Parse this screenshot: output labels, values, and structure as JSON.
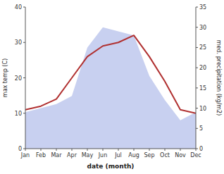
{
  "chart_data": {
    "type": "line",
    "xlabel": "date (month)",
    "ylabel": "max temp (C)",
    "y2label": "med. precipitation (kg/m2)",
    "categories": [
      "Jan",
      "Feb",
      "Mar",
      "Apr",
      "May",
      "Jun",
      "Jul",
      "Aug",
      "Sep",
      "Oct",
      "Nov",
      "Dec"
    ],
    "series": [
      {
        "type": "area",
        "axis": "y2",
        "color": "#c8d0f0",
        "values": [
          9,
          10,
          11,
          13,
          25,
          30,
          29,
          28,
          18,
          12,
          7,
          9
        ]
      },
      {
        "type": "line",
        "color": "#b03030",
        "values": [
          11,
          12,
          14,
          20,
          26,
          29,
          30,
          32,
          26,
          19,
          11,
          10
        ]
      }
    ],
    "ylim": [
      0,
      40
    ],
    "yticks": [
      0,
      10,
      20,
      30,
      40
    ],
    "y2lim": [
      0,
      35
    ],
    "y2ticks": [
      0,
      5,
      10,
      15,
      20,
      25,
      30,
      35
    ],
    "grid": false
  }
}
